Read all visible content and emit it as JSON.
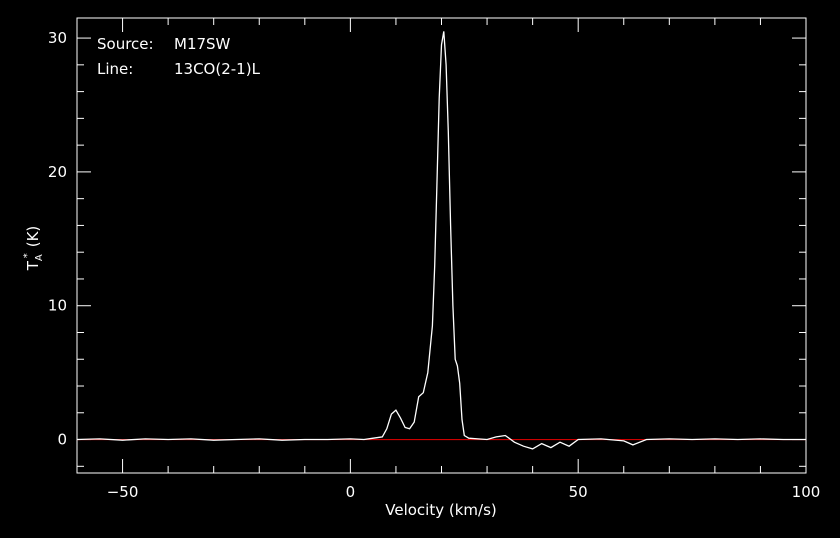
{
  "chart_data": {
    "type": "line",
    "xlabel": "Velocity (km/s)",
    "ylabel_main": "T",
    "ylabel_sub": "A",
    "ylabel_sup": "*",
    "ylabel_unit": "(K)",
    "xlim": [
      -60,
      100
    ],
    "ylim": [
      -2.5,
      31.5
    ],
    "x_major_ticks": [
      -50,
      0,
      50,
      100
    ],
    "x_tick_labels": [
      "−50",
      "0",
      "50",
      "100"
    ],
    "y_major_ticks": [
      0,
      10,
      20,
      30
    ],
    "y_tick_labels": [
      "0",
      "10",
      "20",
      "30"
    ],
    "x_minor_step": 10,
    "y_minor_step": 2,
    "grid": false,
    "annotations": {
      "source_label": "Source:",
      "source_value": "M17SW",
      "line_label": "Line:",
      "line_value": "13CO(2-1)L"
    },
    "baseline": {
      "y": 0,
      "color": "#cc0000"
    },
    "colors": {
      "background": "#000000",
      "axes": "#ffffff",
      "spectrum": "#ffffff"
    },
    "series": [
      {
        "x": [
          -60,
          -55,
          -50,
          -45,
          -40,
          -35,
          -30,
          -25,
          -20,
          -15,
          -10,
          -5,
          0,
          3,
          5,
          7,
          8,
          9,
          10,
          11,
          12,
          13,
          14,
          15,
          16,
          17,
          18,
          18.5,
          19,
          19.5,
          20,
          20.5,
          21,
          21.5,
          22,
          22.5,
          23,
          23.5,
          24,
          24.5,
          25,
          26,
          28,
          30,
          32,
          34,
          36,
          38,
          40,
          42,
          44,
          46,
          48,
          50,
          55,
          60,
          62,
          65,
          70,
          75,
          80,
          85,
          90,
          95,
          100
        ],
        "y": [
          0.0,
          0.05,
          -0.05,
          0.05,
          0.0,
          0.05,
          -0.05,
          0.0,
          0.05,
          -0.05,
          0.0,
          0.0,
          0.05,
          0.0,
          0.1,
          0.2,
          0.8,
          1.9,
          2.2,
          1.6,
          0.9,
          0.8,
          1.3,
          3.2,
          3.5,
          5.0,
          8.5,
          13.0,
          19.0,
          25.5,
          29.5,
          30.5,
          28.0,
          23.0,
          16.0,
          10.0,
          6.0,
          5.5,
          4.2,
          1.5,
          0.3,
          0.1,
          0.05,
          0.0,
          0.2,
          0.3,
          -0.2,
          -0.5,
          -0.7,
          -0.3,
          -0.6,
          -0.2,
          -0.5,
          0.0,
          0.05,
          -0.1,
          -0.4,
          0.0,
          0.05,
          0.0,
          0.05,
          0.0,
          0.05,
          0.0,
          0.0
        ]
      }
    ]
  }
}
